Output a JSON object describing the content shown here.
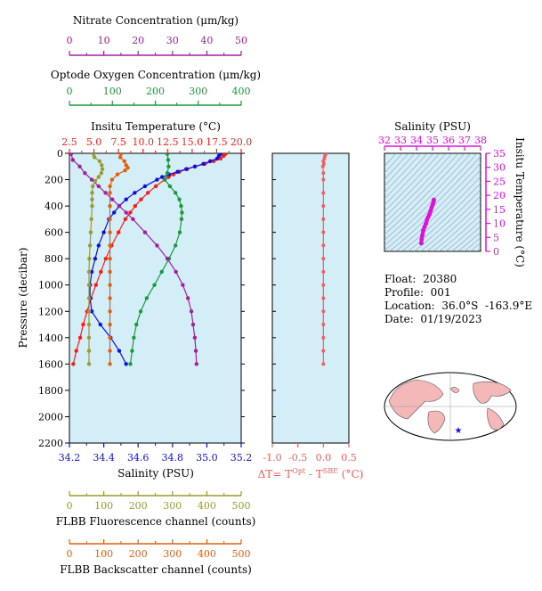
{
  "colors": {
    "nitrate": "#a020a0",
    "oxygen": "#1a9a3a",
    "temperature": "#ff1a1a",
    "salinity": "#1010dd",
    "fluorescence": "#9a9a30",
    "backscatter": "#e06010",
    "delta_t": "#f06060",
    "ts_salinity": "#dd10dd",
    "panel_bg": "#d4eef8"
  },
  "float_info": {
    "float_label": "Float:",
    "float_value": "20380",
    "profile_label": "Profile:",
    "profile_value": "001",
    "location_label": "Location:",
    "location_value": "36.0°S  -163.9°E",
    "date_label": "Date:",
    "date_value": "01/19/2023"
  },
  "chart_data": [
    {
      "type": "line",
      "panel": "profile",
      "ylabel": "Pressure (decibar)",
      "ylim": [
        2200,
        0
      ],
      "yticks": [
        "0",
        "200",
        "400",
        "600",
        "800",
        "1000",
        "1200",
        "1400",
        "1600",
        "1800",
        "2000",
        "2200"
      ],
      "axes": {
        "nitrate": {
          "label": "Nitrate Concentration (μm/kg)",
          "lim": [
            0,
            50
          ],
          "ticks": [
            "0",
            "10",
            "20",
            "30",
            "40",
            "50"
          ]
        },
        "oxygen": {
          "label": "Optode Oxygen Concentration (μm/kg)",
          "lim": [
            0,
            400
          ],
          "ticks": [
            "0",
            "100",
            "200",
            "300",
            "400"
          ]
        },
        "temperature": {
          "label": "Insitu Temperature (°C)",
          "lim": [
            2.5,
            20.0
          ],
          "ticks": [
            "2.5",
            "5.0",
            "7.5",
            "10.0",
            "12.5",
            "15.0",
            "17.5",
            "20.0"
          ]
        },
        "salinity": {
          "label": "Salinity (PSU)",
          "lim": [
            34.2,
            35.2
          ],
          "ticks": [
            "34.2",
            "34.4",
            "34.6",
            "34.8",
            "35.0",
            "35.2"
          ]
        },
        "fluorescence": {
          "label": "FLBB Fluorescence channel (counts)",
          "lim": [
            0,
            500
          ],
          "ticks": [
            "0",
            "100",
            "200",
            "300",
            "400",
            "500"
          ]
        },
        "backscatter": {
          "label": "FLBB Backscatter channel (counts)",
          "lim": [
            0,
            500
          ],
          "ticks": [
            "0",
            "100",
            "200",
            "300",
            "400",
            "500"
          ]
        }
      },
      "series": [
        {
          "key": "temperature",
          "pressure": [
            5,
            20,
            40,
            60,
            80,
            100,
            120,
            140,
            160,
            180,
            200,
            250,
            300,
            350,
            400,
            450,
            500,
            600,
            700,
            800,
            900,
            1000,
            1100,
            1200,
            1300,
            1400,
            1500,
            1600
          ],
          "values": [
            18.4,
            18.2,
            17.9,
            17.2,
            16.3,
            15.3,
            14.5,
            13.7,
            13.1,
            12.6,
            12.2,
            11.3,
            10.5,
            9.8,
            9.2,
            8.7,
            8.2,
            7.5,
            6.8,
            6.2,
            5.7,
            5.2,
            4.7,
            4.3,
            3.9,
            3.6,
            3.2,
            2.9
          ]
        },
        {
          "key": "salinity",
          "pressure": [
            5,
            20,
            40,
            60,
            80,
            100,
            120,
            140,
            160,
            180,
            200,
            250,
            300,
            350,
            400,
            450,
            500,
            600,
            700,
            800,
            900,
            1000,
            1100,
            1200,
            1300,
            1400,
            1500,
            1600
          ],
          "values": [
            35.08,
            35.07,
            35.06,
            35.02,
            34.98,
            34.93,
            34.88,
            34.83,
            34.78,
            34.74,
            34.71,
            34.64,
            34.58,
            34.53,
            34.49,
            34.46,
            34.43,
            34.4,
            34.37,
            34.35,
            34.33,
            34.32,
            34.32,
            34.33,
            34.38,
            34.44,
            34.49,
            34.53
          ]
        },
        {
          "key": "oxygen",
          "pressure": [
            5,
            50,
            100,
            150,
            200,
            250,
            300,
            350,
            400,
            450,
            500,
            600,
            700,
            800,
            900,
            1000,
            1100,
            1200,
            1300,
            1400,
            1500,
            1600
          ],
          "values": [
            228,
            230,
            231,
            228,
            222,
            234,
            247,
            256,
            260,
            262,
            261,
            257,
            247,
            232,
            215,
            198,
            180,
            166,
            156,
            150,
            146,
            142
          ]
        },
        {
          "key": "nitrate",
          "pressure": [
            5,
            50,
            100,
            150,
            200,
            250,
            300,
            350,
            400,
            450,
            500,
            600,
            700,
            800,
            900,
            1000,
            1100,
            1200,
            1300,
            1400,
            1500,
            1600
          ],
          "values": [
            0.5,
            1.0,
            3.0,
            4.5,
            6.5,
            8.5,
            10.5,
            12.5,
            14.5,
            16.5,
            18.5,
            22.0,
            25.5,
            28.5,
            31.0,
            33.0,
            34.5,
            35.5,
            36.0,
            36.5,
            36.8,
            37.0
          ]
        },
        {
          "key": "fluorescence",
          "pressure": [
            5,
            30,
            60,
            90,
            120,
            150,
            180,
            210,
            250,
            300,
            350,
            400,
            500,
            600,
            700,
            800,
            900,
            1000,
            1100,
            1200,
            1300,
            1400,
            1500,
            1600
          ],
          "values": [
            70,
            73,
            88,
            94,
            96,
            93,
            85,
            75,
            68,
            66,
            66,
            66,
            64,
            62,
            60,
            58,
            57,
            57,
            57,
            57,
            57,
            57,
            57,
            57
          ]
        },
        {
          "key": "backscatter",
          "pressure": [
            5,
            30,
            60,
            90,
            110,
            130,
            160,
            200,
            250,
            300,
            400,
            500,
            600,
            700,
            800,
            900,
            1000,
            1100,
            1200,
            1300,
            1400,
            1500,
            1600
          ],
          "values": [
            150,
            148,
            160,
            165,
            170,
            162,
            140,
            124,
            118,
            118,
            118,
            118,
            118,
            118,
            118,
            118,
            118,
            118,
            118,
            118,
            118,
            118,
            118
          ]
        }
      ]
    },
    {
      "type": "line",
      "panel": "delta_t",
      "xlabel": "ΔT= T^Opt - T^SBE (°C)",
      "xlabel_parts": [
        "ΔT= T",
        "Opt",
        " - T",
        "SBE",
        " (°C)"
      ],
      "xlim": [
        -1.0,
        0.5
      ],
      "xticks": [
        "-1.0",
        "-0.5",
        "0.0",
        "0.5"
      ],
      "ylim": [
        2200,
        0
      ],
      "pressure": [
        5,
        20,
        40,
        60,
        80,
        100,
        150,
        200,
        300,
        400,
        500,
        600,
        700,
        800,
        900,
        1000,
        1100,
        1200,
        1300,
        1400,
        1500,
        1600
      ],
      "values": [
        0.05,
        0.03,
        0.02,
        0.0,
        0.01,
        -0.01,
        0.0,
        0.0,
        0.0,
        0.0,
        0.0,
        0.0,
        0.0,
        0.0,
        0.0,
        0.0,
        0.0,
        0.0,
        0.0,
        0.0,
        0.0,
        0.0
      ]
    },
    {
      "type": "scatter",
      "panel": "ts",
      "title": "Salinity (PSU)",
      "xlim": [
        32,
        38
      ],
      "xticks": [
        "32",
        "33",
        "34",
        "35",
        "36",
        "37",
        "38"
      ],
      "ylabel": "Insitu Temperature (°C)",
      "ylim": [
        0,
        35
      ],
      "yticks": [
        "0",
        "5",
        "10",
        "15",
        "20",
        "25",
        "30",
        "35"
      ],
      "salinity": [
        34.3,
        34.32,
        34.36,
        34.42,
        34.5,
        34.58,
        34.65,
        34.72,
        34.8,
        34.88,
        34.95,
        35.02,
        35.07,
        35.08
      ],
      "temperature": [
        2.9,
        4.3,
        5.7,
        7.5,
        8.7,
        9.8,
        11.3,
        12.2,
        13.1,
        14.5,
        15.8,
        16.8,
        17.9,
        18.4
      ]
    }
  ]
}
